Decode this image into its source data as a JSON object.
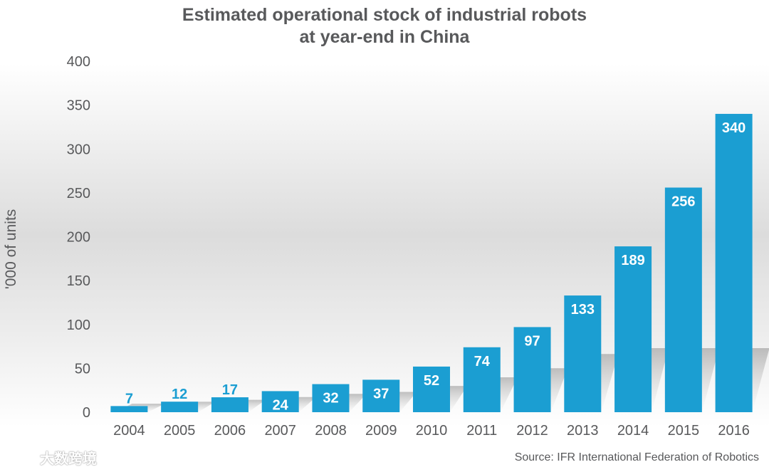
{
  "chart_data": {
    "type": "bar",
    "title": [
      "Estimated operational stock of industrial robots",
      "at year-end in China"
    ],
    "xlabel": "",
    "ylabel": "'000 of units",
    "ylim": [
      0,
      400
    ],
    "yticks": [
      0,
      50,
      100,
      150,
      200,
      250,
      300,
      350,
      400
    ],
    "categories": [
      "2004",
      "2005",
      "2006",
      "2007",
      "2008",
      "2009",
      "2010",
      "2011",
      "2012",
      "2013",
      "2014",
      "2015",
      "2016"
    ],
    "values": [
      7,
      12,
      17,
      24,
      32,
      37,
      52,
      74,
      97,
      133,
      189,
      256,
      340
    ],
    "bar_color": "#1b9ed2",
    "label_inside_color": "#ffffff",
    "label_outside_color": "#1b9ed2",
    "grid": false
  },
  "source": "Source: IFR International Federation of Robotics",
  "watermark": {
    "text": "大数跨境"
  }
}
